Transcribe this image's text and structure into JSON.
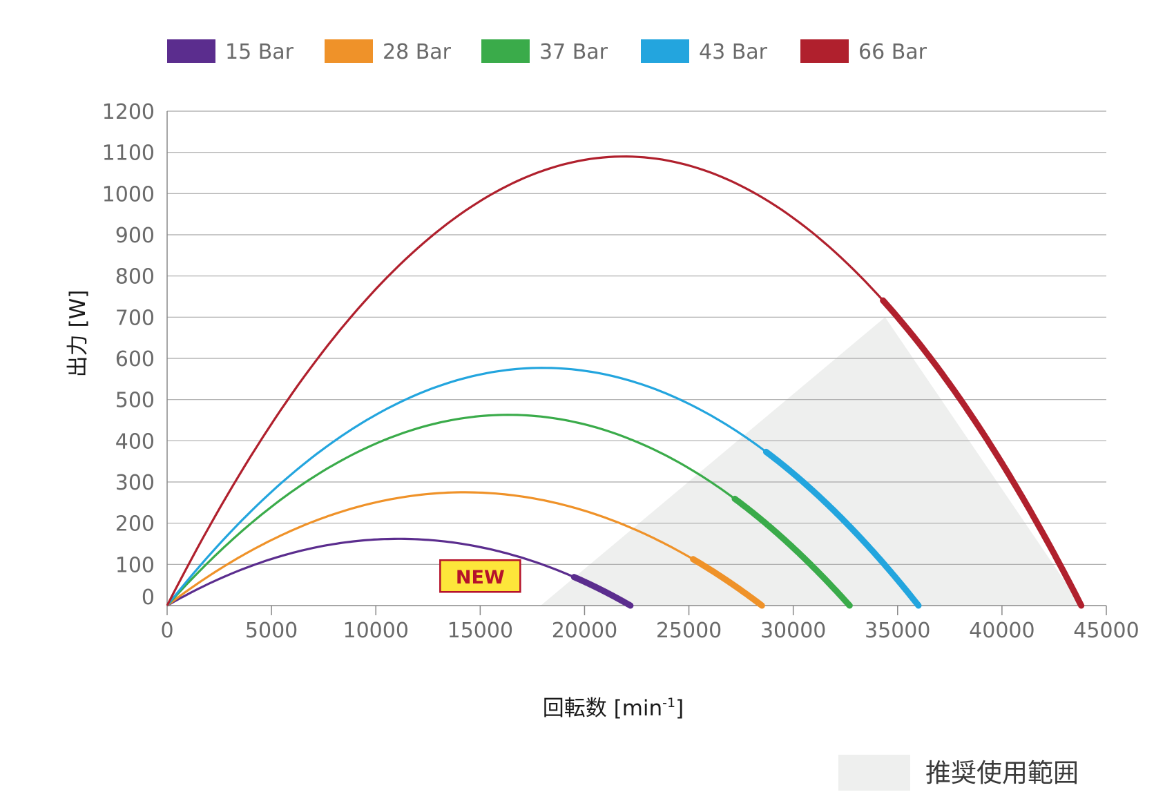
{
  "chart_data": {
    "type": "line",
    "xlabel": "回転数 [min",
    "xlabel_sup": "-1",
    "xlabel_close": "]",
    "ylabel": "出力 [W]",
    "xlim": [
      0,
      45000
    ],
    "ylim": [
      0,
      1200
    ],
    "x_ticks": [
      "0",
      "5000",
      "10000",
      "15000",
      "20000",
      "25000",
      "30000",
      "35000",
      "40000",
      "45000"
    ],
    "y_ticks": [
      "0",
      "100",
      "200",
      "300",
      "400",
      "500",
      "600",
      "700",
      "800",
      "900",
      "1000",
      "1100",
      "1200"
    ],
    "grid": "horizontal",
    "legend_position": "top",
    "series": [
      {
        "name": "15 Bar",
        "color": "#5b2d8e",
        "max_rpm": 22200,
        "peak_rpm": 11700,
        "peak_power": 162,
        "recommended_from": 19500
      },
      {
        "name": "28 Bar",
        "color": "#ef9229",
        "max_rpm": 28500,
        "peak_rpm": 14100,
        "peak_power": 275,
        "recommended_from": 25200
      },
      {
        "name": "37 Bar",
        "color": "#3aab4a",
        "max_rpm": 32700,
        "peak_rpm": 16400,
        "peak_power": 463,
        "recommended_from": 27200
      },
      {
        "name": "43 Bar",
        "color": "#23a5de",
        "max_rpm": 36000,
        "peak_rpm": 17900,
        "peak_power": 577,
        "recommended_from": 28700
      },
      {
        "name": "66 Bar",
        "color": "#b0202d",
        "max_rpm": 43800,
        "peak_rpm": 21900,
        "peak_power": 1090,
        "recommended_from": 34300
      }
    ],
    "recommended_area": {
      "label": "推奨使用範囲",
      "color": "#eeefee",
      "polygon": [
        [
          17900,
          0
        ],
        [
          34400,
          700
        ],
        [
          43800,
          0
        ]
      ]
    },
    "annotation": {
      "text": "NEW",
      "x": 15000,
      "y": 70,
      "bg": "#fde63a",
      "border": "#b5122b"
    }
  }
}
